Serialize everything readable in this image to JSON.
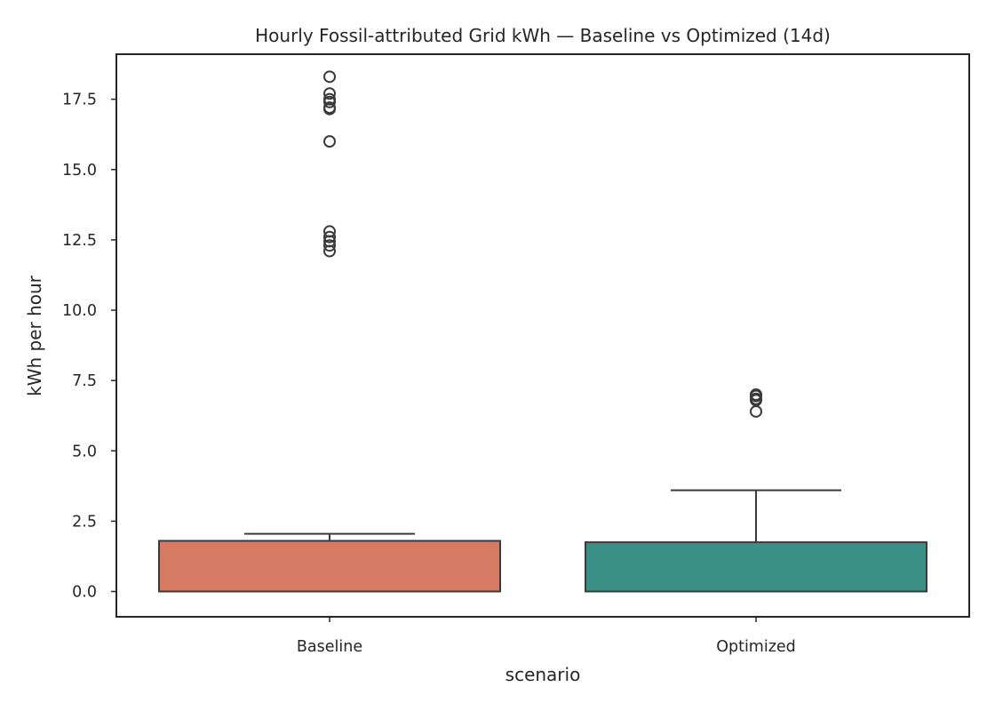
{
  "chart_data": {
    "type": "boxplot",
    "title": "Hourly Fossil-attributed Grid kWh — Baseline vs Optimized (14d)",
    "xlabel": "scenario",
    "ylabel": "kWh per hour",
    "ylim": [
      -0.9,
      19.1
    ],
    "yticks": [
      0.0,
      2.5,
      5.0,
      7.5,
      10.0,
      12.5,
      15.0,
      17.5
    ],
    "ytick_labels": [
      "0.0",
      "2.5",
      "5.0",
      "7.5",
      "10.0",
      "12.5",
      "15.0",
      "17.5"
    ],
    "grid": false,
    "categories": [
      "Baseline",
      "Optimized"
    ],
    "boxes": [
      {
        "category": "Baseline",
        "color": "#d77a63",
        "whisker_low": 0.0,
        "q1": 0.0,
        "median": 0.0,
        "q3": 1.8,
        "whisker_high": 2.05,
        "outliers": [
          18.3,
          17.7,
          17.5,
          17.4,
          17.2,
          17.15,
          16.0,
          12.8,
          12.6,
          12.45,
          12.3,
          12.1
        ]
      },
      {
        "category": "Optimized",
        "color": "#3a9085",
        "whisker_low": 0.0,
        "q1": 0.0,
        "median": 0.0,
        "q3": 1.75,
        "whisker_high": 3.6,
        "outliers": [
          7.0,
          6.95,
          6.85,
          6.8,
          6.4
        ]
      }
    ]
  }
}
